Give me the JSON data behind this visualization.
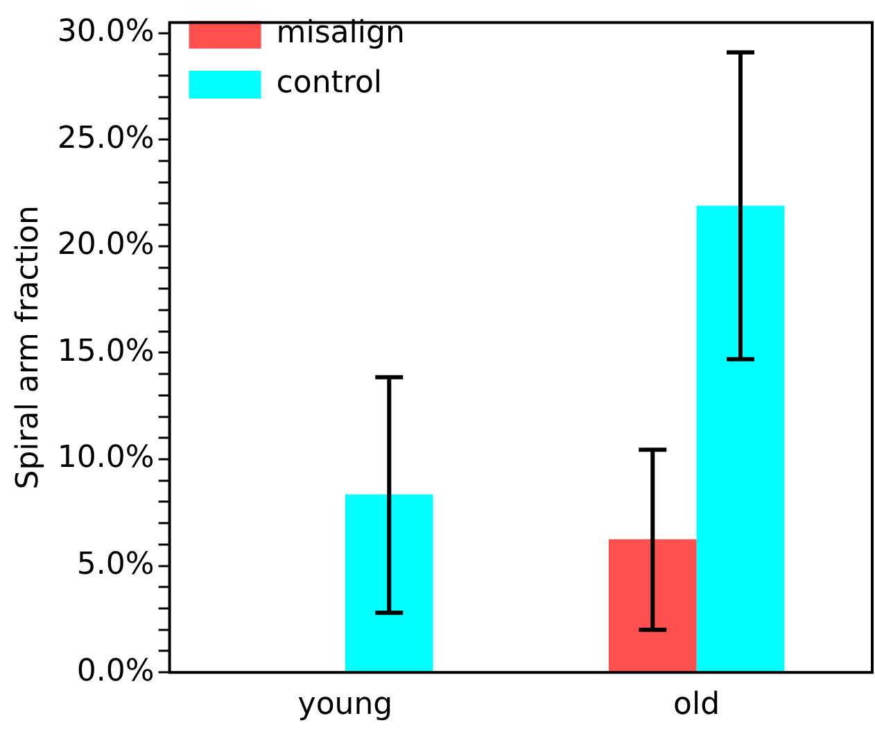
{
  "chart_data": {
    "type": "bar",
    "ylabel": "Spiral arm fraction",
    "categories": [
      "young",
      "old"
    ],
    "series": [
      {
        "name": "misalign",
        "color": "#ff5050",
        "values": [
          0,
          6.25
        ],
        "errors": [
          null,
          [
            2.0,
            10.45
          ]
        ]
      },
      {
        "name": "control",
        "color": "#00ffff",
        "values": [
          8.35,
          21.9
        ],
        "errors": [
          [
            2.8,
            13.85
          ],
          [
            14.7,
            29.1
          ]
        ]
      }
    ],
    "ylim": [
      0,
      30.5
    ],
    "yticks": [
      {
        "value": 0,
        "label": "0.0%"
      },
      {
        "value": 1,
        "label": null
      },
      {
        "value": 2,
        "label": null
      },
      {
        "value": 3,
        "label": null
      },
      {
        "value": 4,
        "label": null
      },
      {
        "value": 5,
        "label": "5.0%"
      },
      {
        "value": 6,
        "label": null
      },
      {
        "value": 7,
        "label": null
      },
      {
        "value": 8,
        "label": null
      },
      {
        "value": 9,
        "label": null
      },
      {
        "value": 10,
        "label": "10.0%"
      },
      {
        "value": 11,
        "label": null
      },
      {
        "value": 12,
        "label": null
      },
      {
        "value": 13,
        "label": null
      },
      {
        "value": 14,
        "label": null
      },
      {
        "value": 15,
        "label": "15.0%"
      },
      {
        "value": 16,
        "label": null
      },
      {
        "value": 17,
        "label": null
      },
      {
        "value": 18,
        "label": null
      },
      {
        "value": 19,
        "label": null
      },
      {
        "value": 20,
        "label": "20.0%"
      },
      {
        "value": 21,
        "label": null
      },
      {
        "value": 22,
        "label": null
      },
      {
        "value": 23,
        "label": null
      },
      {
        "value": 24,
        "label": null
      },
      {
        "value": 25,
        "label": "25.0%"
      },
      {
        "value": 26,
        "label": null
      },
      {
        "value": 27,
        "label": null
      },
      {
        "value": 28,
        "label": null
      },
      {
        "value": 29,
        "label": null
      },
      {
        "value": 30,
        "label": "30.0%"
      }
    ],
    "grid": false,
    "legend": "top left"
  }
}
